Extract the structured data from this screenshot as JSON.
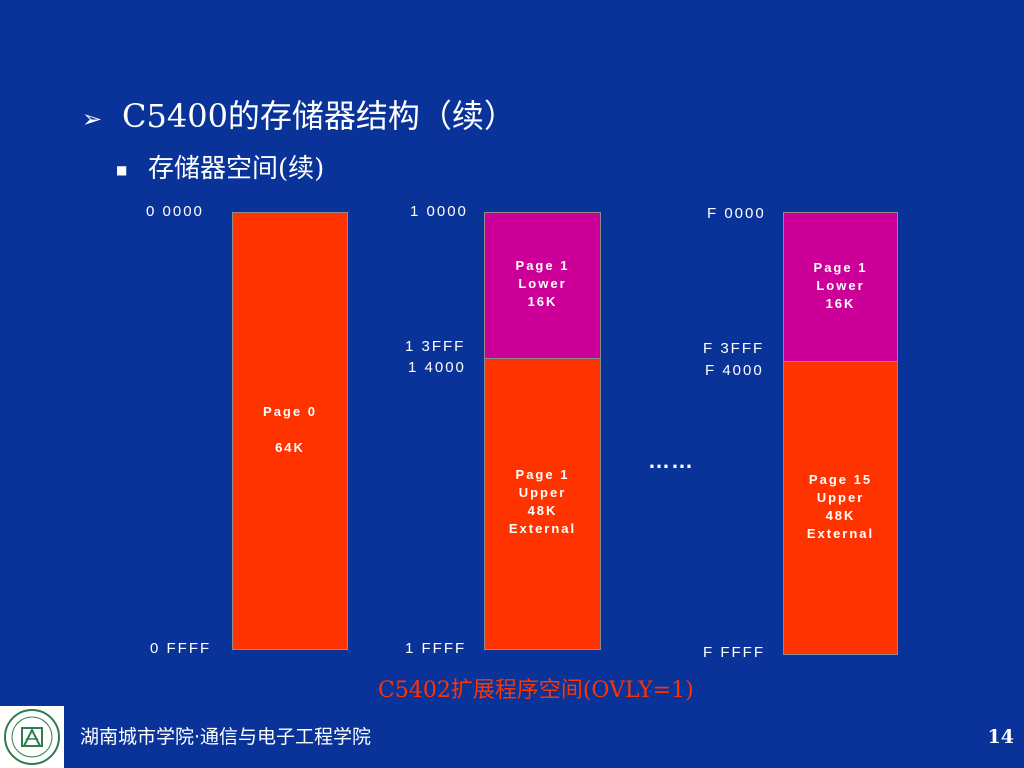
{
  "heading": {
    "bullet": "➢",
    "title": "C5400的存储器结构（续）"
  },
  "subheading": {
    "bullet": "■",
    "text": "存储器空间(续)"
  },
  "diagram": {
    "columns": [
      {
        "addresses": {
          "top": "0 0000",
          "bottom": "0 FFFF"
        },
        "blocks": [
          {
            "label": "Page 0\n\n64K",
            "color": "#FF3300"
          }
        ]
      },
      {
        "addresses": {
          "top": "1 0000",
          "split_end": "1 3FFF",
          "split_start": "1 4000",
          "bottom": "1 FFFF"
        },
        "blocks": [
          {
            "label": "Page 1\nLower\n16K",
            "color": "#CC0099"
          },
          {
            "label": "Page 1\nUpper\n48K\nExternal",
            "color": "#FF3300"
          }
        ]
      },
      {
        "addresses": {
          "top": "F 0000",
          "split_end": "F 3FFF",
          "split_start": "F 4000",
          "bottom": "F FFFF"
        },
        "blocks": [
          {
            "label": "Page 1\nLower\n16K",
            "color": "#CC0099"
          },
          {
            "label": "Page 15\nUpper\n48K\nExternal",
            "color": "#FF3300"
          }
        ]
      }
    ],
    "ellipsis": "……",
    "caption": "C5402扩展程序空间(OVLY=1)"
  },
  "footer": {
    "logo_icon": "university-seal",
    "institution": "湖南城市学院·通信与电子工程学院",
    "page_number": "14"
  },
  "colors": {
    "background": "#0A3399",
    "block_red": "#FF3300",
    "block_magenta": "#CC0099",
    "caption": "#FF3300",
    "text": "#FFFFFF"
  }
}
